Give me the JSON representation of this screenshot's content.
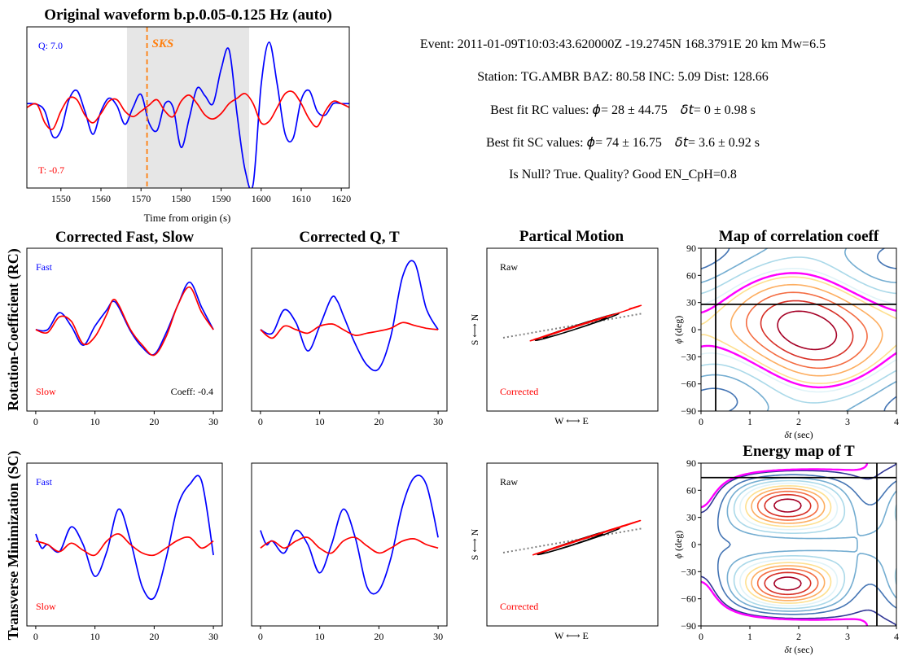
{
  "colors": {
    "fast": "#0000ff",
    "slow": "#ff0000",
    "sks": "#ff7f0e",
    "shade": "#e6e6e6",
    "null_contour": "#ff00ff",
    "pm_fit": "#808080"
  },
  "waveform": {
    "title": "Original waveform b.p.0.05-0.125 Hz (auto)",
    "xlabel": "Time from origin (s)",
    "q_label": "Q: 7.0",
    "t_label": "T: -0.7",
    "phase_label": "SKS"
  },
  "info": {
    "event": "Event: 2011-01-09T10:03:43.620000Z   -19.2745N 168.3791E 20 km  Mw=6.5",
    "station": "Station: TG.AMBR  BAZ: 80.58  INC: 5.09 Dist: 128.66",
    "rc_prefix": "Best fit RC values: ",
    "rc_phi_sym": "ϕ",
    "rc_phi": "= 28 ± 44.75",
    "rc_dt_sym": "δt",
    "rc_dt": "= 0 ± 0.98 s",
    "sc_prefix": "Best fit SC values: ",
    "sc_phi_sym": "ϕ",
    "sc_phi": "= 74 ± 16.75",
    "sc_dt_sym": "δt",
    "sc_dt": "= 3.6 ± 0.92 s",
    "null": "Is Null? True. Quality? Good   EN_CpH=0.8"
  },
  "rows": {
    "rc_label": "Rotation-Coefficient (RC)",
    "sc_label": "Transverse Minimization (SC)"
  },
  "panels": {
    "fast_slow_title": "Corrected Fast, Slow",
    "qt_title": "Corrected Q, T",
    "pm_title": "Partical Motion",
    "corr_title": "Map of correlation coeff",
    "energy_title": "Energy map of T",
    "fast_label": "Fast",
    "slow_label": "Slow",
    "coeff_label": "Coeff: -0.4",
    "raw_label": "Raw",
    "corrected_label": "Corrected",
    "pm_xlabel": "W ⟷ E",
    "pm_ylabel": "S ⟷ N",
    "map_xlabel_sym": "δt",
    "map_xlabel": " (sec)",
    "map_ylabel_sym": "ϕ",
    "map_ylabel": " (deg)"
  },
  "chart_data": [
    {
      "type": "line",
      "id": "waveform",
      "title": "Original waveform b.p.0.05-0.125 Hz (auto)",
      "xlabel": "Time from origin (s)",
      "xlim": [
        1541.5,
        1622
      ],
      "xticks": [
        1550,
        1560,
        1570,
        1580,
        1590,
        1600,
        1610,
        1620
      ],
      "ylim": [
        -1.05,
        1.05
      ],
      "window_shading": [
        1566.5,
        1597
      ],
      "sks_arrival": 1571.5,
      "series": [
        {
          "name": "Q",
          "color": "#0000ff",
          "x": [
            1541.5,
            1544,
            1546,
            1548,
            1550,
            1552,
            1554,
            1556,
            1558,
            1560,
            1562,
            1564,
            1566,
            1568,
            1570,
            1572,
            1574,
            1576,
            1578,
            1580,
            1582,
            1584,
            1586,
            1588,
            1590,
            1592,
            1594,
            1596,
            1598,
            1600,
            1602,
            1604,
            1606,
            1608,
            1610,
            1612,
            1614,
            1616,
            1618,
            1620,
            1622
          ],
          "y": [
            0.05,
            0.04,
            -0.05,
            -0.38,
            -0.3,
            0.1,
            0.22,
            -0.05,
            -0.35,
            -0.05,
            0.12,
            0.02,
            -0.22,
            0.0,
            0.17,
            -0.2,
            -0.3,
            0.05,
            0.0,
            -0.52,
            -0.15,
            0.25,
            0.15,
            0.05,
            0.5,
            0.75,
            -0.1,
            -0.82,
            -1.0,
            0.3,
            0.85,
            0.3,
            -0.35,
            -0.4,
            0.1,
            0.22,
            -0.05,
            -0.1,
            0.05,
            0.05,
            0.05
          ]
        },
        {
          "name": "T",
          "color": "#ff0000",
          "x": [
            1541.5,
            1544,
            1546,
            1548,
            1550,
            1552,
            1554,
            1556,
            1558,
            1560,
            1562,
            1564,
            1566,
            1568,
            1570,
            1572,
            1574,
            1576,
            1578,
            1580,
            1582,
            1584,
            1586,
            1588,
            1590,
            1592,
            1594,
            1596,
            1598,
            1600,
            1602,
            1604,
            1606,
            1608,
            1610,
            1612,
            1614,
            1616,
            1618,
            1620,
            1622
          ],
          "y": [
            0.0,
            0.04,
            -0.2,
            -0.28,
            -0.05,
            0.12,
            0.1,
            -0.1,
            -0.2,
            -0.08,
            0.08,
            0.1,
            -0.05,
            -0.12,
            -0.05,
            0.03,
            0.1,
            -0.05,
            -0.12,
            0.08,
            0.16,
            0.05,
            -0.1,
            -0.15,
            -0.08,
            0.05,
            0.12,
            0.18,
            0.05,
            -0.2,
            -0.18,
            0.0,
            0.18,
            0.2,
            0.05,
            -0.15,
            -0.25,
            -0.05,
            0.08,
            0.05,
            0.0
          ]
        }
      ]
    },
    {
      "type": "line",
      "id": "rc_fast_slow",
      "title": "Corrected Fast, Slow",
      "xlim": [
        -1.5,
        31.5
      ],
      "xticks": [
        0,
        10,
        20,
        30
      ],
      "ylim": [
        -1.15,
        1.15
      ],
      "series": [
        {
          "name": "Fast",
          "color": "#0000ff",
          "x": [
            0,
            2,
            4,
            6,
            8,
            10,
            12,
            13,
            14,
            16,
            18,
            20,
            22,
            24,
            26,
            28,
            30
          ],
          "y": [
            0.0,
            0.0,
            0.24,
            0.05,
            -0.22,
            0.05,
            0.28,
            0.4,
            0.32,
            -0.02,
            -0.25,
            -0.35,
            -0.05,
            0.35,
            0.67,
            0.32,
            0.0
          ]
        },
        {
          "name": "Slow",
          "color": "#ff0000",
          "x": [
            0,
            2,
            4,
            6,
            8,
            10,
            12,
            13,
            14,
            16,
            18,
            20,
            22,
            24,
            26,
            28,
            30
          ],
          "y": [
            0.0,
            -0.04,
            0.18,
            0.12,
            -0.2,
            -0.1,
            0.22,
            0.42,
            0.35,
            0.0,
            -0.22,
            -0.36,
            -0.1,
            0.35,
            0.6,
            0.25,
            0.0
          ]
        }
      ]
    },
    {
      "type": "line",
      "id": "rc_qt",
      "title": "Corrected Q, T",
      "xlim": [
        -1.5,
        31.5
      ],
      "xticks": [
        0,
        10,
        20,
        30
      ],
      "ylim": [
        -1.15,
        1.15
      ],
      "series": [
        {
          "name": "Q",
          "color": "#0000ff",
          "x": [
            0,
            2,
            4,
            6,
            8,
            10,
            12,
            13,
            14,
            16,
            18,
            20,
            22,
            24,
            26,
            28,
            30
          ],
          "y": [
            0.0,
            -0.05,
            0.28,
            0.1,
            -0.3,
            0.05,
            0.45,
            0.4,
            0.2,
            -0.2,
            -0.5,
            -0.55,
            -0.1,
            0.75,
            0.95,
            0.3,
            0.0
          ]
        },
        {
          "name": "T",
          "color": "#ff0000",
          "x": [
            0,
            2,
            4,
            6,
            8,
            10,
            12,
            13,
            14,
            16,
            18,
            20,
            22,
            24,
            26,
            28,
            30
          ],
          "y": [
            0.0,
            -0.12,
            0.05,
            0.0,
            -0.05,
            0.05,
            0.08,
            0.05,
            0.0,
            -0.08,
            -0.05,
            -0.02,
            0.02,
            0.1,
            0.06,
            0.02,
            0.0
          ]
        }
      ]
    },
    {
      "type": "line",
      "id": "sc_fast_slow",
      "title": "",
      "xlim": [
        -1.5,
        31.5
      ],
      "xticks": [
        0,
        10,
        20,
        30
      ],
      "ylim": [
        -1.15,
        1.15
      ],
      "series": [
        {
          "name": "Fast",
          "color": "#0000ff",
          "x": [
            0,
            1,
            2,
            4,
            6,
            8,
            10,
            12,
            14,
            16,
            18,
            20,
            22,
            24,
            26,
            28,
            30
          ],
          "y": [
            0.15,
            -0.05,
            0.0,
            -0.1,
            0.25,
            0.0,
            -0.45,
            -0.1,
            0.5,
            0.05,
            -0.6,
            -0.75,
            -0.2,
            0.55,
            0.85,
            0.9,
            -0.15
          ]
        },
        {
          "name": "Slow",
          "color": "#ff0000",
          "x": [
            0,
            2,
            4,
            6,
            8,
            10,
            12,
            14,
            16,
            18,
            20,
            22,
            24,
            26,
            28,
            30
          ],
          "y": [
            0.05,
            0.0,
            -0.1,
            0.02,
            -0.08,
            -0.15,
            0.05,
            0.15,
            0.0,
            -0.12,
            -0.15,
            -0.05,
            0.06,
            0.1,
            -0.05,
            0.05
          ]
        }
      ]
    },
    {
      "type": "line",
      "id": "sc_qt",
      "title": "",
      "xlim": [
        -1.5,
        31.5
      ],
      "xticks": [
        0,
        10,
        20,
        30
      ],
      "ylim": [
        -1.15,
        1.15
      ],
      "series": [
        {
          "name": "Q",
          "color": "#0000ff",
          "x": [
            0,
            1,
            2,
            4,
            6,
            8,
            10,
            12,
            14,
            16,
            18,
            20,
            22,
            24,
            26,
            28,
            30
          ],
          "y": [
            0.2,
            0.0,
            0.05,
            -0.12,
            0.2,
            0.0,
            -0.4,
            0.0,
            0.5,
            0.1,
            -0.6,
            -0.65,
            -0.2,
            0.55,
            0.95,
            0.85,
            0.1
          ]
        },
        {
          "name": "T",
          "color": "#ff0000",
          "x": [
            0,
            2,
            4,
            6,
            8,
            10,
            12,
            14,
            16,
            18,
            20,
            22,
            24,
            26,
            28,
            30
          ],
          "y": [
            -0.05,
            0.05,
            -0.05,
            0.05,
            0.1,
            -0.05,
            -0.12,
            0.05,
            0.1,
            -0.02,
            -0.12,
            -0.05,
            0.05,
            0.08,
            0.0,
            -0.05
          ]
        }
      ]
    },
    {
      "type": "contour",
      "id": "corr_map",
      "title": "Map of correlation coeff",
      "xlabel": "δt (sec)",
      "ylabel": "ϕ (deg)",
      "xlim": [
        0,
        4
      ],
      "ylim": [
        -90,
        90
      ],
      "xticks": [
        0,
        1,
        2,
        3,
        4
      ],
      "yticks": [
        -90,
        -60,
        -30,
        0,
        30,
        60,
        90
      ],
      "best_fit": {
        "dt": 0.3,
        "phi": 28
      }
    },
    {
      "type": "contour",
      "id": "energy_map",
      "title": "Energy map of T",
      "xlabel": "δt (sec)",
      "ylabel": "ϕ (deg)",
      "xlim": [
        0,
        4
      ],
      "ylim": [
        -90,
        90
      ],
      "xticks": [
        0,
        1,
        2,
        3,
        4
      ],
      "yticks": [
        -90,
        -60,
        -30,
        0,
        30,
        60,
        90
      ],
      "best_fit": {
        "dt": 3.6,
        "phi": 74
      }
    }
  ]
}
